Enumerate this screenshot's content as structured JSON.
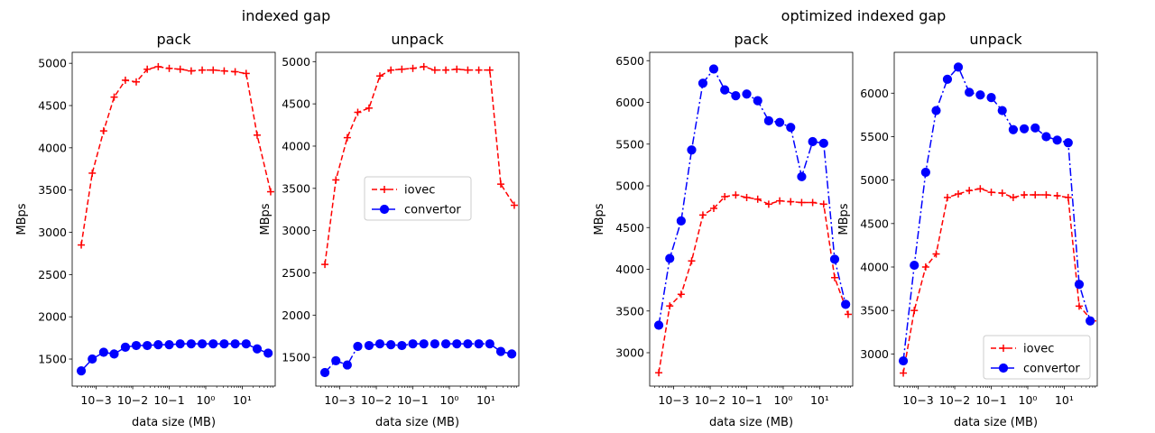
{
  "suptitles": [
    "indexed gap",
    "optimized indexed gap"
  ],
  "chart_data": [
    {
      "type": "line",
      "group": "indexed gap",
      "title": "pack",
      "xlabel": "data size (MB)",
      "ylabel": "MBps",
      "xscale": "log",
      "xlim": [
        0.00022,
        80
      ],
      "ylim": [
        1180,
        5130
      ],
      "xticks": [
        {
          "value": 0.001,
          "label": "10−3"
        },
        {
          "value": 0.01,
          "label": "10−2"
        },
        {
          "value": 0.1,
          "label": "10−1"
        },
        {
          "value": 1,
          "label": "10⁰"
        },
        {
          "value": 10,
          "label": "10¹"
        }
      ],
      "yticks": [
        1500,
        2000,
        2500,
        3000,
        3500,
        4000,
        4500,
        5000
      ],
      "legend": null,
      "series": [
        {
          "name": "iovec",
          "color": "#ff0000",
          "style": "dashed",
          "marker": "plus",
          "x": [
            0.00039,
            0.00078,
            0.0016,
            0.0031,
            0.0063,
            0.0125,
            0.025,
            0.05,
            0.1,
            0.2,
            0.4,
            0.8,
            1.6,
            3.2,
            6.4,
            12.8,
            25.6,
            60
          ],
          "y": [
            2850,
            3700,
            4200,
            4600,
            4800,
            4780,
            4930,
            4960,
            4940,
            4930,
            4910,
            4920,
            4920,
            4910,
            4900,
            4880,
            4150,
            3480
          ]
        },
        {
          "name": "convertor",
          "color": "#0000ff",
          "style": "solid",
          "marker": "circle",
          "x": [
            0.00039,
            0.00078,
            0.0016,
            0.0031,
            0.0063,
            0.0125,
            0.025,
            0.05,
            0.1,
            0.2,
            0.4,
            0.8,
            1.6,
            3.2,
            6.4,
            12.8,
            25.6,
            51.2
          ],
          "y": [
            1360,
            1500,
            1580,
            1560,
            1640,
            1660,
            1660,
            1670,
            1670,
            1680,
            1680,
            1680,
            1680,
            1680,
            1680,
            1680,
            1620,
            1570
          ]
        }
      ]
    },
    {
      "type": "line",
      "group": "indexed gap",
      "title": "unpack",
      "xlabel": "data size (MB)",
      "ylabel": "MBps",
      "xscale": "log",
      "xlim": [
        0.00022,
        80
      ],
      "ylim": [
        1160,
        5110
      ],
      "xticks": [
        {
          "value": 0.001,
          "label": "10−3"
        },
        {
          "value": 0.01,
          "label": "10−2"
        },
        {
          "value": 0.1,
          "label": "10−1"
        },
        {
          "value": 1,
          "label": "10⁰"
        },
        {
          "value": 10,
          "label": "10¹"
        }
      ],
      "yticks": [
        1500,
        2000,
        2500,
        3000,
        3500,
        4000,
        4500,
        5000
      ],
      "legend": "center right",
      "series": [
        {
          "name": "iovec",
          "color": "#ff0000",
          "style": "dashed",
          "marker": "plus",
          "x": [
            0.00039,
            0.00078,
            0.0016,
            0.0031,
            0.0063,
            0.0125,
            0.025,
            0.05,
            0.1,
            0.2,
            0.4,
            0.8,
            1.6,
            3.2,
            6.4,
            12.8,
            25.6,
            60
          ],
          "y": [
            2600,
            3600,
            4100,
            4400,
            4450,
            4830,
            4900,
            4910,
            4920,
            4940,
            4900,
            4900,
            4910,
            4900,
            4900,
            4900,
            3550,
            3300
          ]
        },
        {
          "name": "convertor",
          "color": "#0000ff",
          "style": "dashdot",
          "marker": "circle",
          "x": [
            0.00039,
            0.00078,
            0.0016,
            0.0031,
            0.0063,
            0.0125,
            0.025,
            0.05,
            0.1,
            0.2,
            0.4,
            0.8,
            1.6,
            3.2,
            6.4,
            12.8,
            25.6,
            51.2
          ],
          "y": [
            1320,
            1460,
            1410,
            1630,
            1640,
            1660,
            1650,
            1640,
            1660,
            1660,
            1660,
            1660,
            1660,
            1660,
            1660,
            1660,
            1570,
            1540
          ]
        }
      ]
    },
    {
      "type": "line",
      "group": "optimized indexed gap",
      "title": "pack",
      "xlabel": "data size (MB)",
      "ylabel": "MBps",
      "xscale": "log",
      "xlim": [
        0.00022,
        80
      ],
      "ylim": [
        2600,
        6600
      ],
      "xticks": [
        {
          "value": 0.001,
          "label": "10−3"
        },
        {
          "value": 0.01,
          "label": "10−2"
        },
        {
          "value": 0.1,
          "label": "10−1"
        },
        {
          "value": 1,
          "label": "10⁰"
        },
        {
          "value": 10,
          "label": "10¹"
        }
      ],
      "yticks": [
        3000,
        3500,
        4000,
        4500,
        5000,
        5500,
        6000,
        6500
      ],
      "legend": null,
      "series": [
        {
          "name": "iovec",
          "color": "#ff0000",
          "style": "dashed",
          "marker": "plus",
          "x": [
            0.00039,
            0.00078,
            0.0016,
            0.0031,
            0.0063,
            0.0125,
            0.025,
            0.05,
            0.1,
            0.2,
            0.4,
            0.8,
            1.6,
            3.2,
            6.4,
            12.8,
            25.6,
            60
          ],
          "y": [
            2760,
            3560,
            3700,
            4100,
            4650,
            4730,
            4870,
            4890,
            4860,
            4840,
            4780,
            4820,
            4810,
            4800,
            4800,
            4780,
            3900,
            3460
          ]
        },
        {
          "name": "convertor",
          "color": "#0000ff",
          "style": "dashdot",
          "marker": "circle",
          "x": [
            0.00039,
            0.00078,
            0.0016,
            0.0031,
            0.0063,
            0.0125,
            0.025,
            0.05,
            0.1,
            0.2,
            0.4,
            0.8,
            1.6,
            3.2,
            6.4,
            12.8,
            25.6,
            51.2
          ],
          "y": [
            3330,
            4130,
            4580,
            5430,
            6230,
            6400,
            6150,
            6080,
            6100,
            6020,
            5780,
            5760,
            5700,
            5110,
            5530,
            5510,
            4120,
            3580
          ]
        }
      ]
    },
    {
      "type": "line",
      "group": "optimized indexed gap",
      "title": "unpack",
      "xlabel": "data size (MB)",
      "ylabel": "MBps",
      "xscale": "log",
      "xlim": [
        0.00022,
        80
      ],
      "ylim": [
        2630,
        6470
      ],
      "xticks": [
        {
          "value": 0.001,
          "label": "10−3"
        },
        {
          "value": 0.01,
          "label": "10−2"
        },
        {
          "value": 0.1,
          "label": "10−1"
        },
        {
          "value": 1,
          "label": "10⁰"
        },
        {
          "value": 10,
          "label": "10¹"
        }
      ],
      "yticks": [
        3000,
        3500,
        4000,
        4500,
        5000,
        5500,
        6000
      ],
      "legend": "lower right",
      "series": [
        {
          "name": "iovec",
          "color": "#ff0000",
          "style": "dashed",
          "marker": "plus",
          "x": [
            0.00039,
            0.00078,
            0.0016,
            0.0031,
            0.0063,
            0.0125,
            0.025,
            0.05,
            0.1,
            0.2,
            0.4,
            0.8,
            1.6,
            3.2,
            6.4,
            12.8,
            25.6,
            60
          ],
          "y": [
            2780,
            3500,
            4000,
            4150,
            4800,
            4840,
            4880,
            4900,
            4860,
            4850,
            4800,
            4830,
            4830,
            4830,
            4820,
            4800,
            3550,
            3380
          ]
        },
        {
          "name": "convertor",
          "color": "#0000ff",
          "style": "dashdot",
          "marker": "circle",
          "x": [
            0.00039,
            0.00078,
            0.0016,
            0.0031,
            0.0063,
            0.0125,
            0.025,
            0.05,
            0.1,
            0.2,
            0.4,
            0.8,
            1.6,
            3.2,
            6.4,
            12.8,
            25.6,
            51.2
          ],
          "y": [
            2920,
            4020,
            5090,
            5800,
            6160,
            6300,
            6010,
            5980,
            5950,
            5800,
            5580,
            5590,
            5600,
            5500,
            5460,
            5430,
            3800,
            3380
          ]
        }
      ]
    }
  ]
}
